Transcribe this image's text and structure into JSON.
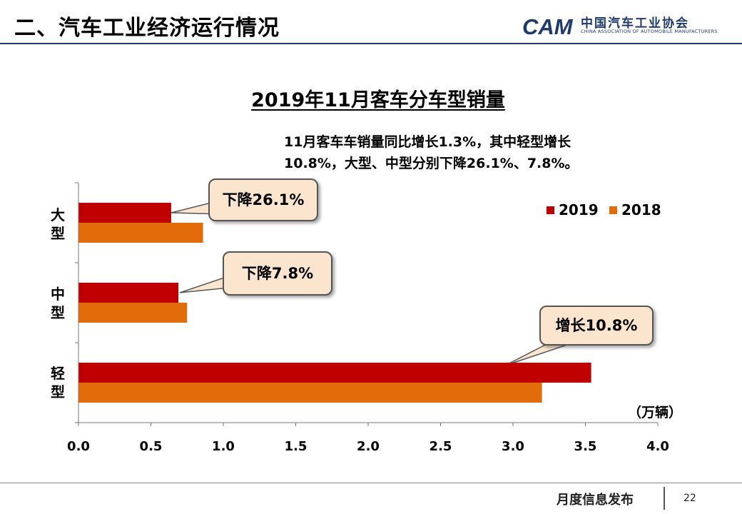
{
  "header": {
    "title": "二、汽车工业经济运行情况",
    "logo_mark": "CAM",
    "logo_name": "中国汽车工业协会",
    "logo_sub": "CHINA ASSOCIATION OF AUTOMOBILE MANUFACTURERS"
  },
  "note": {
    "line1": "11月客车车销量同比增长1.3%，其中轻型增长",
    "line2": "10.8%，大型、中型分别下降26.1%、7.8%。"
  },
  "callouts": {
    "large": "下降26.1%",
    "medium": "下降7.8%",
    "light": "增长10.8%"
  },
  "footer": {
    "label": "月度信息发布",
    "page": "22"
  },
  "colors": {
    "series2019": "#c00000",
    "series2018": "#e36c0a",
    "callout_bg": "#fbe5cf",
    "header_rule": "#1f3a6e"
  },
  "chart_data": {
    "type": "bar",
    "orientation": "horizontal",
    "title": "2019年11月客车分车型销量",
    "categories": [
      "大型",
      "中型",
      "轻型"
    ],
    "series": [
      {
        "name": "2019",
        "values": [
          0.64,
          0.69,
          3.54
        ]
      },
      {
        "name": "2018",
        "values": [
          0.86,
          0.75,
          3.2
        ]
      }
    ],
    "xlim": [
      0,
      4
    ],
    "xticks": [
      "0.0",
      "0.5",
      "1.0",
      "1.5",
      "2.0",
      "2.5",
      "3.0",
      "3.5",
      "4.0"
    ],
    "unit_label": "（万辆）",
    "grid": false,
    "legend_position": "top-right"
  }
}
